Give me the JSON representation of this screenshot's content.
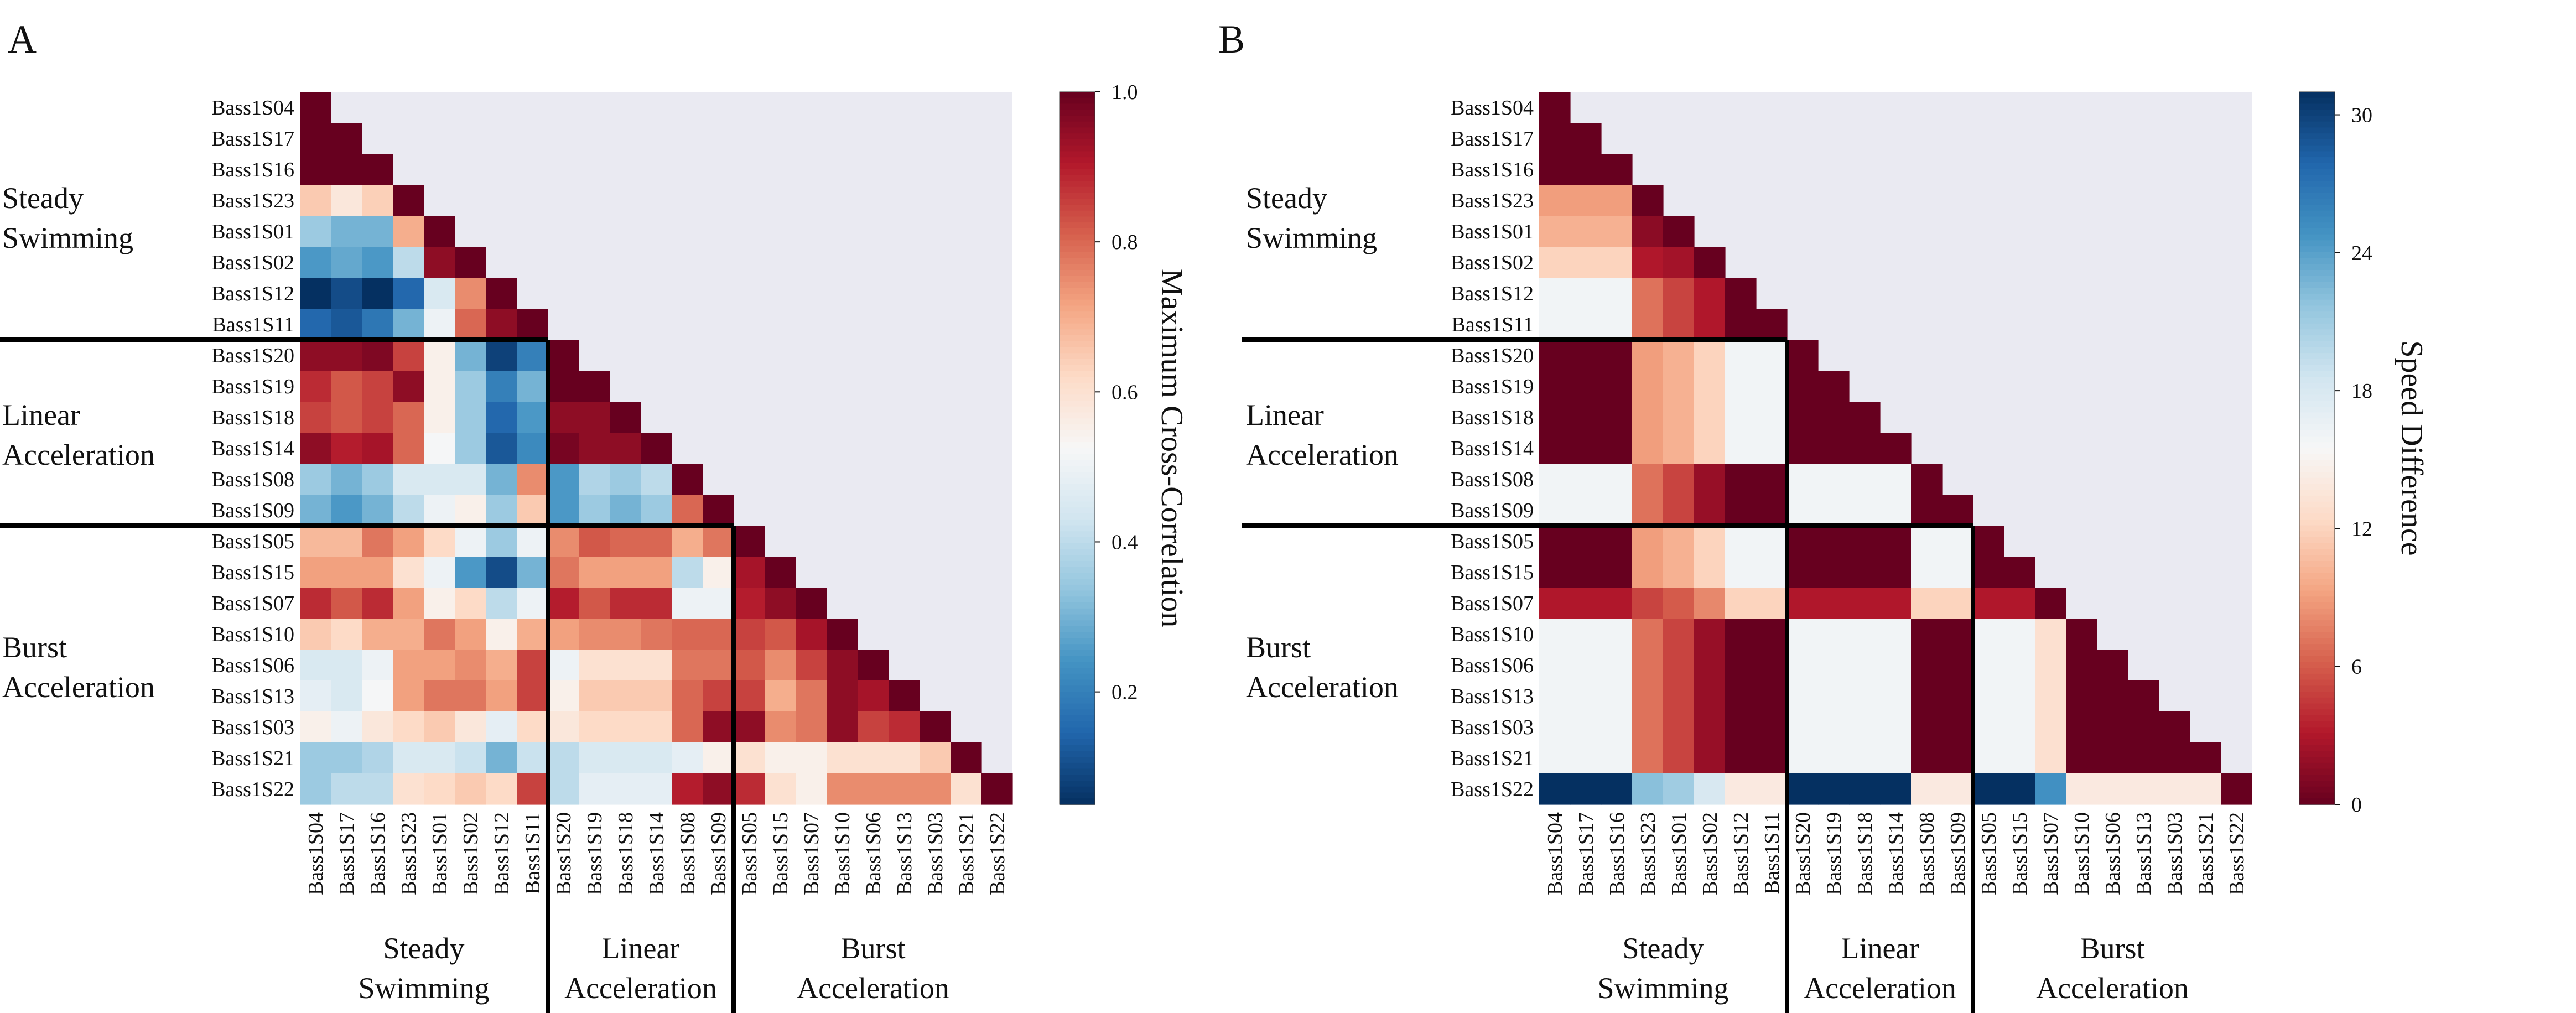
{
  "chart_data": [
    {
      "type": "heatmap",
      "panel_label": "A",
      "row_labels": [
        "Bass1S04",
        "Bass1S17",
        "Bass1S16",
        "Bass1S23",
        "Bass1S01",
        "Bass1S02",
        "Bass1S12",
        "Bass1S11",
        "Bass1S20",
        "Bass1S19",
        "Bass1S18",
        "Bass1S14",
        "Bass1S08",
        "Bass1S09",
        "Bass1S05",
        "Bass1S15",
        "Bass1S07",
        "Bass1S10",
        "Bass1S06",
        "Bass1S13",
        "Bass1S03",
        "Bass1S21",
        "Bass1S22"
      ],
      "col_labels": [
        "Bass1S04",
        "Bass1S17",
        "Bass1S16",
        "Bass1S23",
        "Bass1S01",
        "Bass1S02",
        "Bass1S12",
        "Bass1S11",
        "Bass1S20",
        "Bass1S19",
        "Bass1S18",
        "Bass1S14",
        "Bass1S08",
        "Bass1S09",
        "Bass1S05",
        "Bass1S15",
        "Bass1S07",
        "Bass1S10",
        "Bass1S06",
        "Bass1S13",
        "Bass1S03",
        "Bass1S21",
        "Bass1S22"
      ],
      "masked": "upper triangle",
      "colorbar": {
        "label": "Maximum Cross-Correlation",
        "colormap": "RdBu",
        "range": [
          0.05,
          1.0
        ],
        "ticks": [
          "0.2",
          "0.4",
          "0.6",
          "0.8",
          "1.0"
        ],
        "tick_values": [
          0.2,
          0.4,
          0.6,
          0.8,
          1.0
        ]
      },
      "groups": [
        {
          "name_lines": [
            "Steady",
            "Swimming"
          ],
          "start": 0,
          "count": 8
        },
        {
          "name_lines": [
            "Linear",
            "Acceleration"
          ],
          "start": 8,
          "count": 6
        },
        {
          "name_lines": [
            "Burst",
            "Acceleration"
          ],
          "start": 14,
          "count": 9
        }
      ],
      "values": [
        [
          1.0
        ],
        [
          1.0,
          1.0
        ],
        [
          1.0,
          1.0,
          1.0
        ],
        [
          0.65,
          0.58,
          0.64,
          1.0
        ],
        [
          0.35,
          0.3,
          0.3,
          0.7,
          1.0
        ],
        [
          0.25,
          0.28,
          0.25,
          0.4,
          0.95,
          1.0
        ],
        [
          0.05,
          0.1,
          0.05,
          0.15,
          0.45,
          0.75,
          1.0
        ],
        [
          0.15,
          0.12,
          0.18,
          0.3,
          0.5,
          0.8,
          0.95,
          1.0
        ],
        [
          0.95,
          0.95,
          0.97,
          0.85,
          0.55,
          0.3,
          0.08,
          0.2,
          1.0
        ],
        [
          0.88,
          0.82,
          0.85,
          0.95,
          0.55,
          0.35,
          0.2,
          0.3,
          1.0,
          1.0
        ],
        [
          0.85,
          0.82,
          0.85,
          0.8,
          0.55,
          0.35,
          0.15,
          0.25,
          0.95,
          0.95,
          1.0
        ],
        [
          0.95,
          0.9,
          0.92,
          0.8,
          0.52,
          0.35,
          0.12,
          0.22,
          0.98,
          0.95,
          0.95,
          1.0
        ],
        [
          0.35,
          0.3,
          0.35,
          0.45,
          0.45,
          0.45,
          0.3,
          0.75,
          0.25,
          0.38,
          0.35,
          0.4,
          1.0
        ],
        [
          0.3,
          0.25,
          0.3,
          0.4,
          0.5,
          0.55,
          0.35,
          0.65,
          0.25,
          0.35,
          0.3,
          0.35,
          0.8,
          1.0
        ],
        [
          0.68,
          0.68,
          0.78,
          0.72,
          0.62,
          0.5,
          0.35,
          0.5,
          0.75,
          0.82,
          0.8,
          0.8,
          0.7,
          0.78,
          1.0
        ],
        [
          0.72,
          0.72,
          0.72,
          0.6,
          0.5,
          0.25,
          0.1,
          0.3,
          0.78,
          0.72,
          0.72,
          0.72,
          0.4,
          0.55,
          0.92,
          1.0
        ],
        [
          0.88,
          0.82,
          0.88,
          0.72,
          0.55,
          0.62,
          0.4,
          0.5,
          0.9,
          0.82,
          0.88,
          0.88,
          0.5,
          0.5,
          0.9,
          0.95,
          1.0
        ],
        [
          0.65,
          0.62,
          0.7,
          0.7,
          0.78,
          0.72,
          0.55,
          0.7,
          0.72,
          0.75,
          0.75,
          0.78,
          0.8,
          0.8,
          0.85,
          0.82,
          0.92,
          1.0
        ],
        [
          0.45,
          0.45,
          0.5,
          0.72,
          0.72,
          0.75,
          0.7,
          0.85,
          0.5,
          0.6,
          0.6,
          0.6,
          0.78,
          0.78,
          0.82,
          0.75,
          0.85,
          0.95,
          1.0
        ],
        [
          0.48,
          0.45,
          0.52,
          0.72,
          0.78,
          0.78,
          0.72,
          0.85,
          0.55,
          0.65,
          0.65,
          0.65,
          0.8,
          0.85,
          0.85,
          0.7,
          0.78,
          0.95,
          0.92,
          1.0
        ],
        [
          0.55,
          0.5,
          0.58,
          0.62,
          0.65,
          0.58,
          0.48,
          0.62,
          0.58,
          0.62,
          0.62,
          0.62,
          0.8,
          0.95,
          0.95,
          0.75,
          0.78,
          0.95,
          0.85,
          0.88,
          1.0
        ],
        [
          0.35,
          0.35,
          0.38,
          0.45,
          0.45,
          0.42,
          0.3,
          0.42,
          0.4,
          0.45,
          0.45,
          0.45,
          0.48,
          0.55,
          0.6,
          0.55,
          0.55,
          0.6,
          0.6,
          0.6,
          0.65,
          1.0
        ],
        [
          0.35,
          0.4,
          0.4,
          0.6,
          0.62,
          0.65,
          0.62,
          0.85,
          0.4,
          0.48,
          0.48,
          0.48,
          0.9,
          0.95,
          0.88,
          0.6,
          0.55,
          0.75,
          0.75,
          0.75,
          0.75,
          0.6,
          1.0
        ]
      ]
    },
    {
      "type": "heatmap",
      "panel_label": "B",
      "row_labels": [
        "Bass1S04",
        "Bass1S17",
        "Bass1S16",
        "Bass1S23",
        "Bass1S01",
        "Bass1S02",
        "Bass1S12",
        "Bass1S11",
        "Bass1S20",
        "Bass1S19",
        "Bass1S18",
        "Bass1S14",
        "Bass1S08",
        "Bass1S09",
        "Bass1S05",
        "Bass1S15",
        "Bass1S07",
        "Bass1S10",
        "Bass1S06",
        "Bass1S13",
        "Bass1S03",
        "Bass1S21",
        "Bass1S22"
      ],
      "col_labels": [
        "Bass1S04",
        "Bass1S17",
        "Bass1S16",
        "Bass1S23",
        "Bass1S01",
        "Bass1S02",
        "Bass1S12",
        "Bass1S11",
        "Bass1S20",
        "Bass1S19",
        "Bass1S18",
        "Bass1S14",
        "Bass1S08",
        "Bass1S09",
        "Bass1S05",
        "Bass1S15",
        "Bass1S07",
        "Bass1S10",
        "Bass1S06",
        "Bass1S13",
        "Bass1S03",
        "Bass1S21",
        "Bass1S22"
      ],
      "masked": "upper triangle",
      "colorbar": {
        "label": "Speed Difference",
        "colormap": "RdBu",
        "range": [
          0,
          31
        ],
        "ticks": [
          "0",
          "6",
          "12",
          "18",
          "24",
          "30"
        ],
        "tick_values": [
          0,
          6,
          12,
          18,
          24,
          30
        ]
      },
      "groups": [
        {
          "name_lines": [
            "Steady",
            "Swimming"
          ],
          "start": 0,
          "count": 8
        },
        {
          "name_lines": [
            "Linear",
            "Acceleration"
          ],
          "start": 8,
          "count": 6
        },
        {
          "name_lines": [
            "Burst",
            "Acceleration"
          ],
          "start": 14,
          "count": 9
        }
      ],
      "values": [
        [
          0
        ],
        [
          0,
          0
        ],
        [
          0,
          0,
          0
        ],
        [
          9,
          9,
          9,
          0
        ],
        [
          10,
          10,
          10,
          1.5,
          0
        ],
        [
          12,
          12,
          12,
          3,
          2.5,
          0
        ],
        [
          16,
          16,
          16,
          7,
          5,
          3,
          0
        ],
        [
          16,
          16,
          16,
          7,
          5,
          3,
          0,
          0
        ],
        [
          0,
          0,
          0,
          9,
          10,
          12,
          16,
          16,
          0
        ],
        [
          0,
          0,
          0,
          9,
          10,
          12,
          16,
          16,
          0,
          0
        ],
        [
          0,
          0,
          0,
          9,
          10,
          12,
          16,
          16,
          0,
          0,
          0
        ],
        [
          0,
          0,
          0,
          9,
          10,
          12,
          16,
          16,
          0,
          0,
          0,
          0
        ],
        [
          16,
          16,
          16,
          7,
          5,
          2,
          0,
          0,
          16,
          16,
          16,
          16,
          0
        ],
        [
          16,
          16,
          16,
          7,
          5,
          2,
          0,
          0,
          16,
          16,
          16,
          16,
          0,
          0
        ],
        [
          0,
          0,
          0,
          9,
          10,
          12,
          16,
          16,
          0,
          0,
          0,
          0,
          16,
          16,
          0
        ],
        [
          0,
          0,
          0,
          9,
          10,
          12,
          16,
          16,
          0,
          0,
          0,
          0,
          16,
          16,
          0,
          0
        ],
        [
          3,
          3,
          3,
          5,
          6,
          8,
          12,
          12,
          3,
          3,
          3,
          3,
          12,
          12,
          3,
          3,
          0
        ],
        [
          16,
          16,
          16,
          7,
          5,
          2,
          0,
          0,
          16,
          16,
          16,
          16,
          0,
          0,
          16,
          16,
          13,
          0
        ],
        [
          16,
          16,
          16,
          7,
          5,
          2,
          0,
          0,
          16,
          16,
          16,
          16,
          0,
          0,
          16,
          16,
          13,
          0,
          0
        ],
        [
          16,
          16,
          16,
          7,
          5,
          2,
          0,
          0,
          16,
          16,
          16,
          16,
          0,
          0,
          16,
          16,
          13,
          0,
          0,
          0
        ],
        [
          16,
          16,
          16,
          7,
          5,
          2,
          0,
          0,
          16,
          16,
          16,
          16,
          0,
          0,
          16,
          16,
          13,
          0,
          0,
          0,
          0
        ],
        [
          16,
          16,
          16,
          7,
          5,
          2,
          0,
          0,
          16,
          16,
          16,
          16,
          0,
          0,
          16,
          16,
          13,
          0,
          0,
          0,
          0,
          0
        ],
        [
          31,
          31,
          31,
          22,
          21,
          18,
          14,
          14,
          31,
          31,
          31,
          31,
          14,
          14,
          31,
          31,
          25,
          14,
          14,
          14,
          14,
          14,
          0
        ]
      ]
    }
  ]
}
